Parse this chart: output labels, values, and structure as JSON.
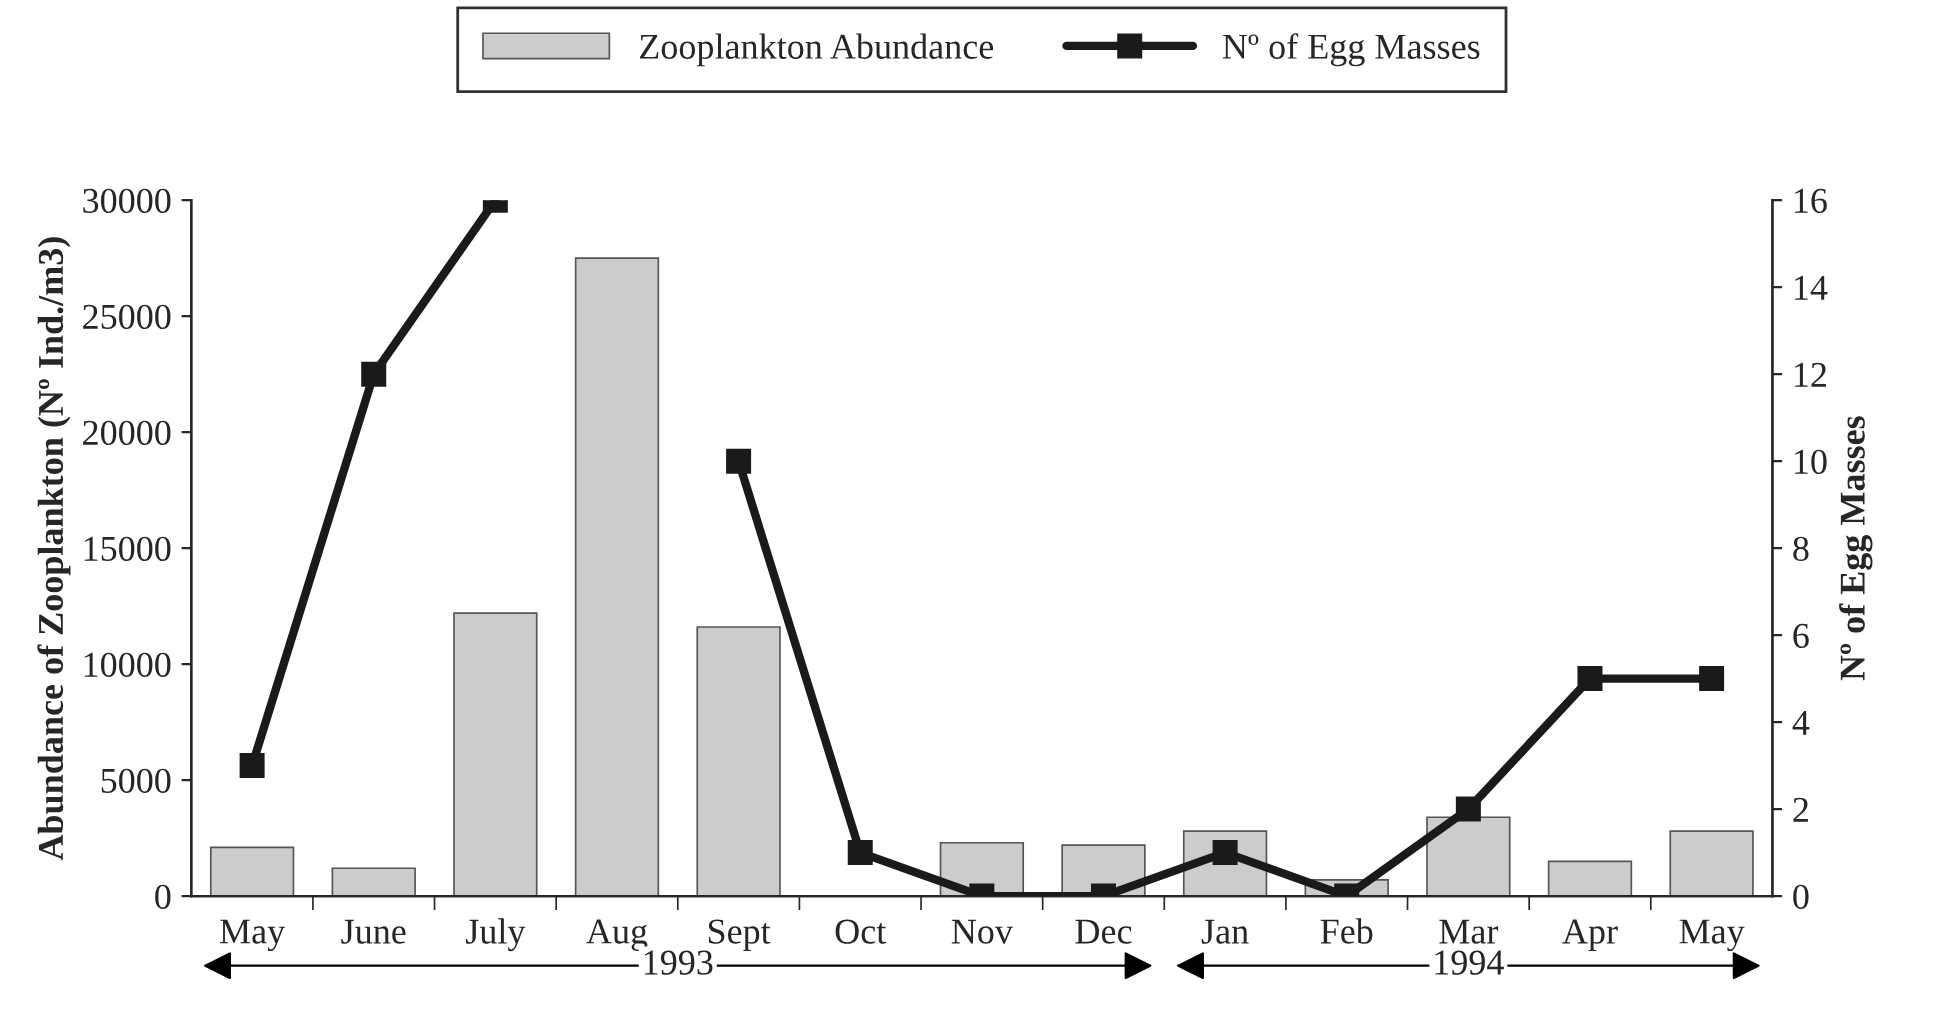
{
  "chart_data": {
    "type": "bar",
    "categories": [
      "May",
      "June",
      "July",
      "Aug",
      "Sept",
      "Oct",
      "Nov",
      "Dec",
      "Jan",
      "Feb",
      "Mar",
      "Apr",
      "May"
    ],
    "series": [
      {
        "name": "Zooplankton Abundance",
        "color": "#cccccc",
        "values": [
          2100,
          1200,
          12200,
          27500,
          11600,
          null,
          2300,
          2200,
          2800,
          700,
          3400,
          1500,
          2800
        ]
      },
      {
        "name": "Nº of Egg Masses",
        "type": "line",
        "axis": "y2",
        "color": "#1a1a1a",
        "values": [
          3,
          12,
          16,
          null,
          10,
          1,
          0,
          0,
          1,
          0,
          2,
          5,
          5
        ]
      }
    ],
    "ylabel": "Abundance of Zooplankton (Nº Ind./m3)",
    "y2label": "Nº of Egg Masses",
    "ylim": [
      0,
      30000
    ],
    "yticks": [
      0,
      5000,
      10000,
      15000,
      20000,
      25000,
      30000
    ],
    "y2lim": [
      0,
      16
    ],
    "y2ticks": [
      0,
      2,
      4,
      6,
      8,
      10,
      12,
      14,
      16
    ],
    "annotations": [
      "1993",
      "1994"
    ],
    "legend": "top",
    "marker": "square",
    "line_style": "solid",
    "grid": false
  }
}
